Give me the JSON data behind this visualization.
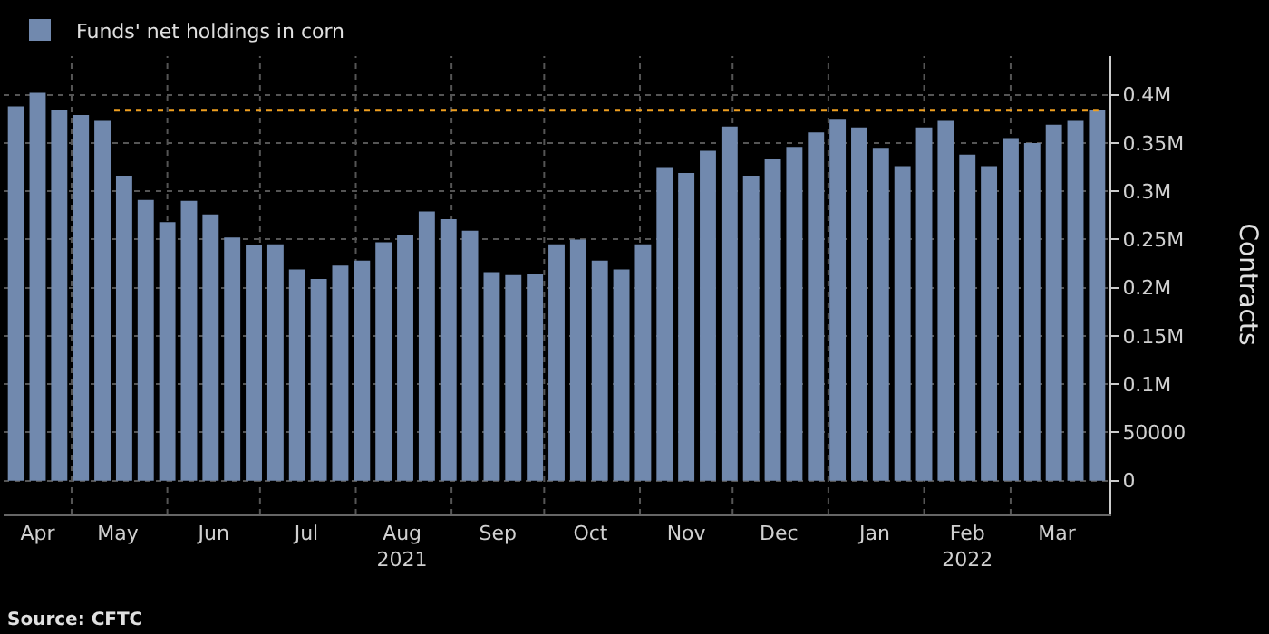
{
  "chart_data": {
    "type": "bar",
    "legend": "top left",
    "ylabel": "Contracts",
    "grid": true,
    "x": [
      "2021-04-13",
      "2021-04-20",
      "2021-04-27",
      "2021-05-04",
      "2021-05-11",
      "2021-05-18",
      "2021-05-25",
      "2021-06-01",
      "2021-06-08",
      "2021-06-15",
      "2021-06-22",
      "2021-06-29",
      "2021-07-06",
      "2021-07-13",
      "2021-07-20",
      "2021-07-27",
      "2021-08-03",
      "2021-08-10",
      "2021-08-17",
      "2021-08-24",
      "2021-08-31",
      "2021-09-07",
      "2021-09-14",
      "2021-09-21",
      "2021-09-28",
      "2021-10-05",
      "2021-10-12",
      "2021-10-19",
      "2021-10-26",
      "2021-11-02",
      "2021-11-09",
      "2021-11-16",
      "2021-11-23",
      "2021-11-30",
      "2021-12-07",
      "2021-12-14",
      "2021-12-21",
      "2021-12-28",
      "2022-01-04",
      "2022-01-11",
      "2022-01-18",
      "2022-01-25",
      "2022-02-01",
      "2022-02-08",
      "2022-02-15",
      "2022-02-22",
      "2022-03-01",
      "2022-03-08",
      "2022-03-15",
      "2022-03-22",
      "2022-03-29"
    ],
    "series": [
      {
        "name": "Funds' net holdings in corn",
        "color": "#7189ae",
        "values": [
          388000,
          402000,
          384000,
          379000,
          373000,
          316000,
          291000,
          268000,
          290000,
          276000,
          252000,
          244000,
          245000,
          219000,
          209000,
          223000,
          228000,
          247000,
          255000,
          279000,
          271000,
          259000,
          216000,
          213000,
          214000,
          245000,
          250000,
          228000,
          219000,
          245000,
          325000,
          319000,
          342000,
          367000,
          316000,
          333000,
          346000,
          361000,
          375000,
          366000,
          345000,
          326000,
          366000,
          373000,
          338000,
          326000,
          355000,
          350000,
          369000,
          373000,
          384000
        ]
      }
    ],
    "xlim": [
      "2021-04-09",
      "2022-04-02"
    ],
    "xticks": [
      {
        "value": "2021-04-20",
        "label": "Apr"
      },
      {
        "value": "2021-05-01",
        "label": null
      },
      {
        "value": "2021-05-16",
        "label": "May"
      },
      {
        "value": "2021-06-01",
        "label": null
      },
      {
        "value": "2021-06-16",
        "label": "Jun"
      },
      {
        "value": "2021-07-01",
        "label": null
      },
      {
        "value": "2021-07-16",
        "label": "Jul"
      },
      {
        "value": "2021-08-01",
        "label": null
      },
      {
        "value": "2021-08-16",
        "label": "Aug\n2021"
      },
      {
        "value": "2021-09-01",
        "label": null
      },
      {
        "value": "2021-09-16",
        "label": "Sep"
      },
      {
        "value": "2021-10-01",
        "label": null
      },
      {
        "value": "2021-10-16",
        "label": "Oct"
      },
      {
        "value": "2021-11-01",
        "label": null
      },
      {
        "value": "2021-11-16",
        "label": "Nov"
      },
      {
        "value": "2021-12-01",
        "label": null
      },
      {
        "value": "2021-12-16",
        "label": "Dec"
      },
      {
        "value": "2022-01-01",
        "label": null
      },
      {
        "value": "2022-01-16",
        "label": "Jan"
      },
      {
        "value": "2022-02-01",
        "label": null
      },
      {
        "value": "2022-02-15",
        "label": "Feb\n2022"
      },
      {
        "value": "2022-03-01",
        "label": null
      },
      {
        "value": "2022-03-16",
        "label": "Mar"
      }
    ],
    "ylim": [
      -35000,
      440000
    ],
    "yticks": [
      0,
      50000,
      {
        "value": 100000,
        "label": "0.1M"
      },
      {
        "value": 150000,
        "label": "0.15M"
      },
      {
        "value": 200000,
        "label": "0.2M"
      },
      {
        "value": 250000,
        "label": "0.25M"
      },
      {
        "value": 300000,
        "label": "0.3M"
      },
      {
        "value": 350000,
        "label": "0.35M"
      },
      {
        "value": 400000,
        "label": "0.4M"
      }
    ],
    "ref_lines": [
      {
        "axis": "y",
        "value": 384000,
        "color": "#f0a020",
        "line_style": "dotted"
      }
    ],
    "annotations": [
      "Source: CFTC"
    ]
  }
}
